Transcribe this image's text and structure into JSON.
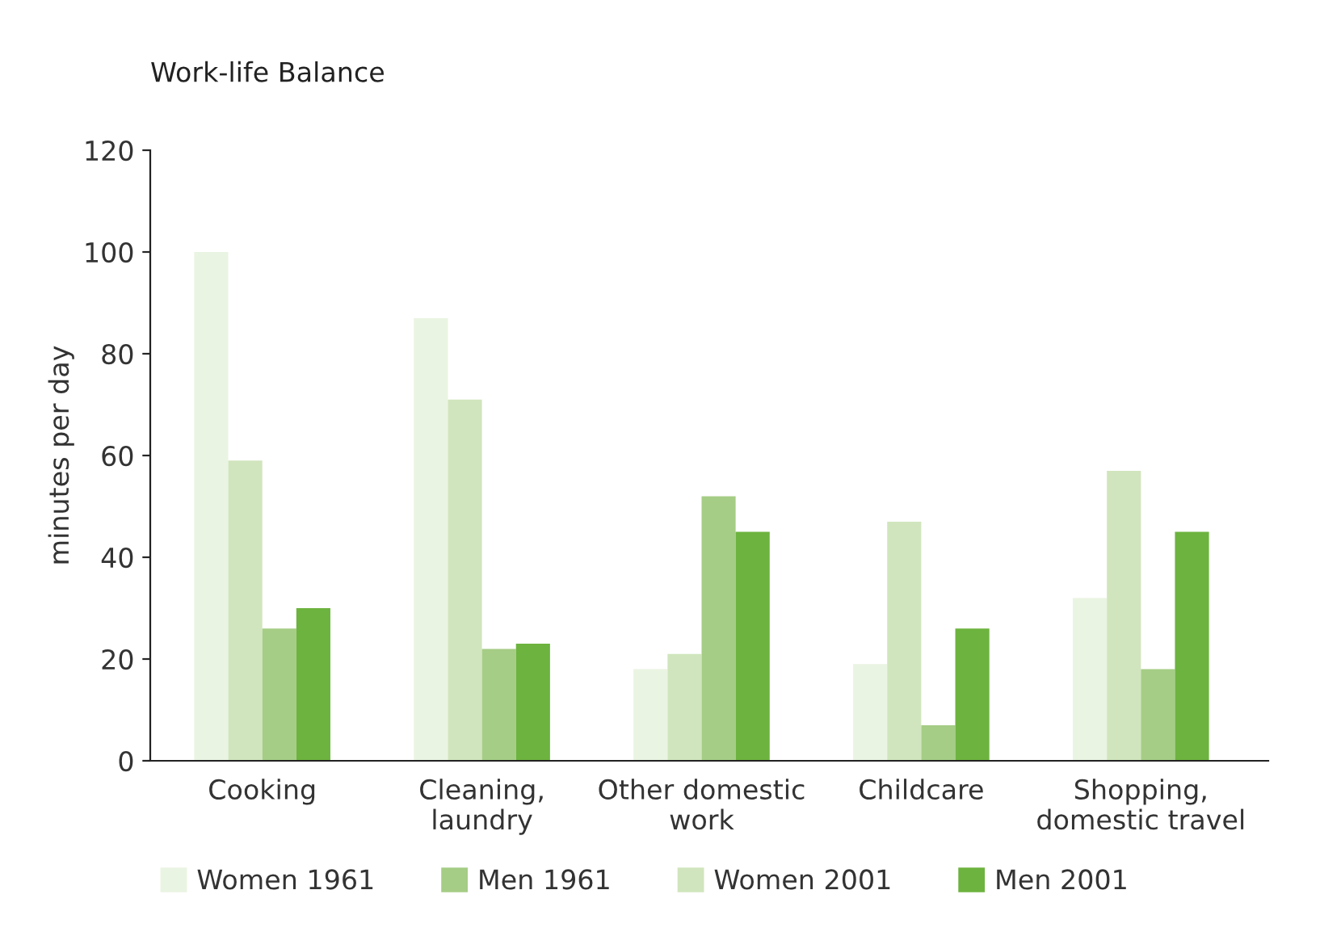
{
  "chart_data": {
    "type": "bar",
    "title": "Work-life Balance",
    "ylabel": "minutes per day",
    "categories": [
      "Cooking",
      "Cleaning,\nlaundry",
      "Other domestic\nwork",
      "Childcare",
      "Shopping,\ndomestic travel"
    ],
    "series": [
      {
        "name": "Women 1961",
        "color": "#eaf4e2",
        "values": [
          100,
          87,
          18,
          19,
          32
        ]
      },
      {
        "name": "Women 2001",
        "color": "#d0e5bd",
        "values": [
          59,
          71,
          21,
          47,
          57
        ]
      },
      {
        "name": "Men 1961",
        "color": "#a5cd85",
        "values": [
          26,
          22,
          52,
          7,
          18
        ]
      },
      {
        "name": "Men 2001",
        "color": "#6db33f",
        "values": [
          30,
          23,
          45,
          26,
          45
        ]
      }
    ],
    "ylim": [
      0,
      120
    ],
    "yticks": [
      0,
      20,
      40,
      60,
      80,
      100,
      120
    ],
    "grid": false,
    "legend": "bottom"
  }
}
